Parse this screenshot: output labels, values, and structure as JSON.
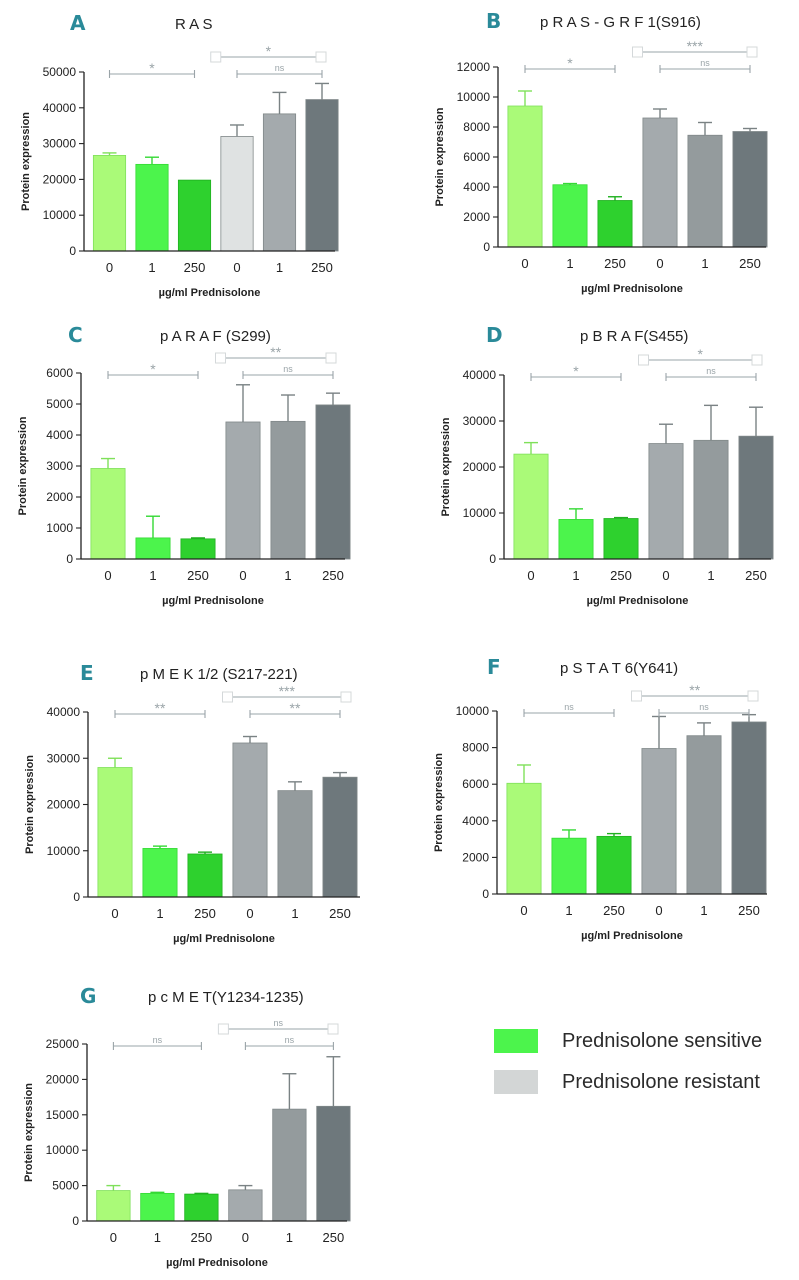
{
  "figure": {
    "legend": [
      {
        "label": "Prednisolone sensitive",
        "color": "#4cf44c"
      },
      {
        "label": "Prednisolone resistant",
        "color": "#d3d6d6"
      }
    ]
  },
  "colors": {
    "sensitive": [
      "#aafa78",
      "#4cf44c",
      "#2ed12e"
    ],
    "sensitive_stroke": [
      "#7fe05a",
      "#34d934",
      "#20b020"
    ],
    "resistant_panel_a": [
      "#dfe2e2",
      "#a4aaad",
      "#6e787c"
    ],
    "resistant": [
      "#a4aaad",
      "#949b9d",
      "#6e787c"
    ],
    "axis": "#222222",
    "bracket": "#9aa4a8",
    "letter": "#2a8a99"
  },
  "chart_data": [
    {
      "panel": "A",
      "type": "bar",
      "title": "R A S",
      "categories": [
        "0",
        "1",
        "250",
        "0",
        "1",
        "250"
      ],
      "values": [
        26700,
        24200,
        19800,
        32000,
        38300,
        42300
      ],
      "errors": [
        700,
        2000,
        0,
        3200,
        6000,
        4500
      ],
      "groups": [
        "sensitive",
        "sensitive",
        "sensitive",
        "resistant",
        "resistant",
        "resistant"
      ],
      "xlabel": "µg/ml Prednisolone",
      "ylabel": "Protein expression",
      "ylim": [
        0,
        50000
      ],
      "yticks": [
        0,
        10000,
        20000,
        30000,
        40000,
        50000
      ],
      "ytick_labels": [
        "0",
        "10000",
        "20000",
        "30000",
        "40000",
        "50000"
      ],
      "annotations": [
        {
          "from": 0,
          "to": 2,
          "label": "*",
          "level": 0
        },
        {
          "from": 3,
          "to": 5,
          "label": "ns",
          "level": 0
        },
        {
          "from": 2,
          "to": 5,
          "label": "*",
          "level": 1,
          "capped": true
        }
      ]
    },
    {
      "panel": "B",
      "type": "bar",
      "title": "p R A S - G R F 1(S916)",
      "categories": [
        "0",
        "1",
        "250",
        "0",
        "1",
        "250"
      ],
      "values": [
        9400,
        4150,
        3100,
        8600,
        7450,
        7700
      ],
      "errors": [
        1000,
        80,
        250,
        600,
        850,
        200
      ],
      "groups": [
        "sensitive",
        "sensitive",
        "sensitive",
        "resistant",
        "resistant",
        "resistant"
      ],
      "xlabel": "µg/ml Prednisolone",
      "ylabel": "Protein expression",
      "ylim": [
        0,
        12000
      ],
      "yticks": [
        0,
        2000,
        4000,
        6000,
        8000,
        10000,
        12000
      ],
      "ytick_labels": [
        "0",
        "2000",
        "4000",
        "6000",
        "8000",
        "10000",
        "12000"
      ],
      "annotations": [
        {
          "from": 0,
          "to": 2,
          "label": "*",
          "level": 0
        },
        {
          "from": 3,
          "to": 5,
          "label": "ns",
          "level": 0
        },
        {
          "from": 2,
          "to": 5,
          "label": "***",
          "level": 1,
          "capped": true
        }
      ]
    },
    {
      "panel": "C",
      "type": "bar",
      "title": "p A R A F (S299)",
      "categories": [
        "0",
        "1",
        "250",
        "0",
        "1",
        "250"
      ],
      "values": [
        2920,
        680,
        650,
        4420,
        4440,
        4970
      ],
      "errors": [
        320,
        700,
        30,
        1200,
        850,
        380
      ],
      "groups": [
        "sensitive",
        "sensitive",
        "sensitive",
        "resistant",
        "resistant",
        "resistant"
      ],
      "xlabel": "µg/ml Prednisolone",
      "ylabel": "Protein expression",
      "ylim": [
        0,
        6000
      ],
      "yticks": [
        0,
        1000,
        2000,
        3000,
        4000,
        5000,
        6000
      ],
      "ytick_labels": [
        "0",
        "1000",
        "2000",
        "3000",
        "4000",
        "5000",
        "6000"
      ],
      "annotations": [
        {
          "from": 0,
          "to": 2,
          "label": "*",
          "level": 0
        },
        {
          "from": 3,
          "to": 5,
          "label": "ns",
          "level": 0
        },
        {
          "from": 2,
          "to": 5,
          "label": "**",
          "level": 1,
          "capped": true
        }
      ]
    },
    {
      "panel": "D",
      "type": "bar",
      "title": "p B R A F(S455)",
      "categories": [
        "0",
        "1",
        "250",
        "0",
        "1",
        "250"
      ],
      "values": [
        22800,
        8600,
        8800,
        25100,
        25800,
        26700
      ],
      "errors": [
        2500,
        2300,
        200,
        4200,
        7600,
        6300
      ],
      "groups": [
        "sensitive",
        "sensitive",
        "sensitive",
        "resistant",
        "resistant",
        "resistant"
      ],
      "xlabel": "µg/ml Prednisolone",
      "ylabel": "Protein expression",
      "ylim": [
        0,
        40000
      ],
      "yticks": [
        0,
        10000,
        20000,
        30000,
        40000
      ],
      "ytick_labels": [
        "0",
        "10000",
        "20000",
        "30000",
        "40000"
      ],
      "annotations": [
        {
          "from": 0,
          "to": 2,
          "label": "*",
          "level": 0
        },
        {
          "from": 3,
          "to": 5,
          "label": "ns",
          "level": 0
        },
        {
          "from": 2,
          "to": 5,
          "label": "*",
          "level": 1,
          "capped": true
        }
      ]
    },
    {
      "panel": "E",
      "type": "bar",
      "title": "p M E K 1/2 (S217-221)",
      "categories": [
        "0",
        "1",
        "250",
        "0",
        "1",
        "250"
      ],
      "values": [
        28000,
        10500,
        9300,
        33300,
        23000,
        25900
      ],
      "errors": [
        2000,
        500,
        400,
        1400,
        1900,
        1000
      ],
      "groups": [
        "sensitive",
        "sensitive",
        "sensitive",
        "resistant",
        "resistant",
        "resistant"
      ],
      "xlabel": "µg/ml Prednisolone",
      "ylabel": "Protein expression",
      "ylim": [
        0,
        40000
      ],
      "yticks": [
        0,
        10000,
        20000,
        30000,
        40000
      ],
      "ytick_labels": [
        "0",
        "10000",
        "20000",
        "30000",
        "40000"
      ],
      "annotations": [
        {
          "from": 0,
          "to": 2,
          "label": "**",
          "level": 0
        },
        {
          "from": 3,
          "to": 5,
          "label": "**",
          "level": 0
        },
        {
          "from": 2,
          "to": 5,
          "label": "***",
          "level": 1,
          "capped": true
        }
      ]
    },
    {
      "panel": "F",
      "type": "bar",
      "title": "p S T A T 6(Y641)",
      "categories": [
        "0",
        "1",
        "250",
        "0",
        "1",
        "250"
      ],
      "values": [
        6050,
        3050,
        3150,
        7950,
        8650,
        9400
      ],
      "errors": [
        1000,
        450,
        150,
        1750,
        700,
        400
      ],
      "groups": [
        "sensitive",
        "sensitive",
        "sensitive",
        "resistant",
        "resistant",
        "resistant"
      ],
      "xlabel": "µg/ml Prednisolone",
      "ylabel": "Protein expression",
      "ylim": [
        0,
        10000
      ],
      "yticks": [
        0,
        2000,
        4000,
        6000,
        8000,
        10000
      ],
      "ytick_labels": [
        "0",
        "2000",
        "4000",
        "6000",
        "8000",
        "10000"
      ],
      "annotations": [
        {
          "from": 0,
          "to": 2,
          "label": "ns",
          "level": 0
        },
        {
          "from": 3,
          "to": 5,
          "label": "ns",
          "level": 0
        },
        {
          "from": 2,
          "to": 5,
          "label": "**",
          "level": 1,
          "capped": true
        }
      ]
    },
    {
      "panel": "G",
      "type": "bar",
      "title": "p c M E T(Y1234-1235)",
      "categories": [
        "0",
        "1",
        "250",
        "0",
        "1",
        "250"
      ],
      "values": [
        4300,
        3900,
        3800,
        4400,
        15800,
        16200
      ],
      "errors": [
        700,
        150,
        100,
        600,
        5000,
        7000
      ],
      "groups": [
        "sensitive",
        "sensitive",
        "sensitive",
        "resistant",
        "resistant",
        "resistant"
      ],
      "xlabel": "µg/ml Prednisolone",
      "ylabel": "Protein expression",
      "ylim": [
        0,
        25000
      ],
      "yticks": [
        0,
        5000,
        10000,
        15000,
        20000,
        25000
      ],
      "ytick_labels": [
        "0",
        "5000",
        "10000",
        "15000",
        "20000",
        "25000"
      ],
      "annotations": [
        {
          "from": 0,
          "to": 2,
          "label": "ns",
          "level": 0
        },
        {
          "from": 3,
          "to": 5,
          "label": "ns",
          "level": 0
        },
        {
          "from": 2,
          "to": 5,
          "label": "ns",
          "level": 1,
          "capped": true
        }
      ]
    }
  ]
}
